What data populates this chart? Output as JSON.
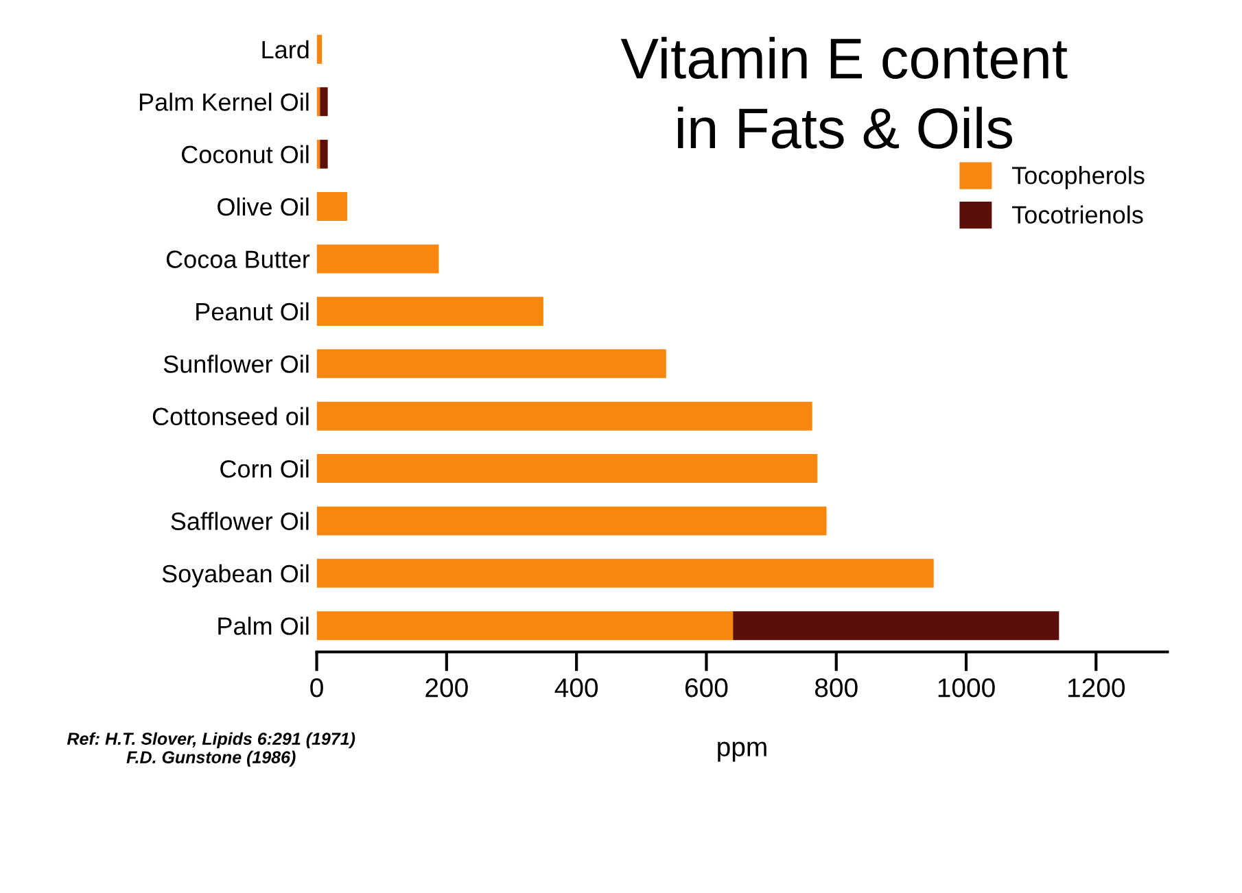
{
  "chart_data": {
    "type": "bar",
    "orientation": "horizontal",
    "stacked": true,
    "title": "Vitamin E content\nin Fats & Oils",
    "xlabel": "ppm",
    "categories": [
      "Lard",
      "Palm Kernel Oil",
      "Coconut Oil",
      "Olive Oil",
      "Cocoa Butter",
      "Peanut Oil",
      "Sunflower Oil",
      "Cottonseed oil",
      "Corn Oil",
      "Safflower Oil",
      "Soyabean Oil",
      "Palm Oil"
    ],
    "series": [
      {
        "name": "Tocopherols",
        "color": "#f7870f",
        "values": [
          8,
          5,
          5,
          47,
          188,
          349,
          538,
          763,
          771,
          785,
          950,
          641
        ]
      },
      {
        "name": "Tocotrienols",
        "color": "#5a0f0a",
        "values": [
          0,
          12,
          12,
          0,
          0,
          0,
          0,
          0,
          0,
          0,
          0,
          502
        ]
      }
    ],
    "xlim": [
      0,
      1310
    ],
    "xticks": [
      0,
      200,
      400,
      600,
      800,
      1000,
      1200
    ],
    "grid": false,
    "legend": "right",
    "annotations": [
      "Ref: H.T. Slover, Lipids 6:291 (1971)\nF.D. Gunstone (1986)"
    ]
  }
}
